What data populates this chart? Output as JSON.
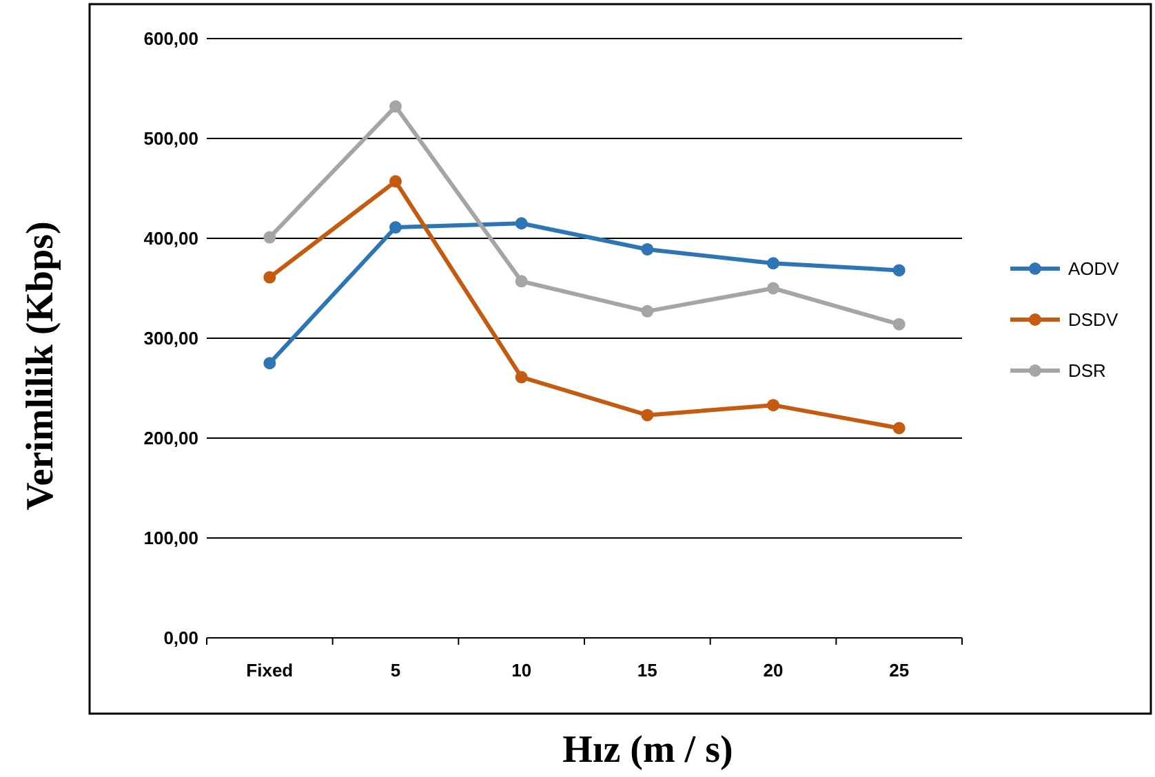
{
  "chart_data": {
    "type": "line",
    "xlabel": "Hız (m / s)",
    "ylabel": "Verimlilik (Kbps)",
    "categories": [
      "Fixed",
      "5",
      "10",
      "15",
      "20",
      "25"
    ],
    "series": [
      {
        "name": "AODV",
        "color": "#2e75b6",
        "values": [
          275,
          411,
          415,
          389,
          375,
          368
        ]
      },
      {
        "name": "DSDV",
        "color": "#c55a11",
        "values": [
          361,
          457,
          261,
          223,
          233,
          210
        ]
      },
      {
        "name": "DSR",
        "color": "#a5a5a5",
        "values": [
          401,
          532,
          357,
          327,
          350,
          314
        ]
      }
    ],
    "ylim": [
      0,
      600
    ],
    "yticks": [
      {
        "value": 0,
        "label": "0,00"
      },
      {
        "value": 100,
        "label": "100,00"
      },
      {
        "value": 200,
        "label": "200,00"
      },
      {
        "value": 300,
        "label": "300,00"
      },
      {
        "value": 400,
        "label": "400,00"
      },
      {
        "value": 500,
        "label": "500,00"
      },
      {
        "value": 600,
        "label": "600,00"
      }
    ],
    "grid": "y",
    "legend": "right",
    "marker": "circle",
    "line_style": "solid"
  }
}
